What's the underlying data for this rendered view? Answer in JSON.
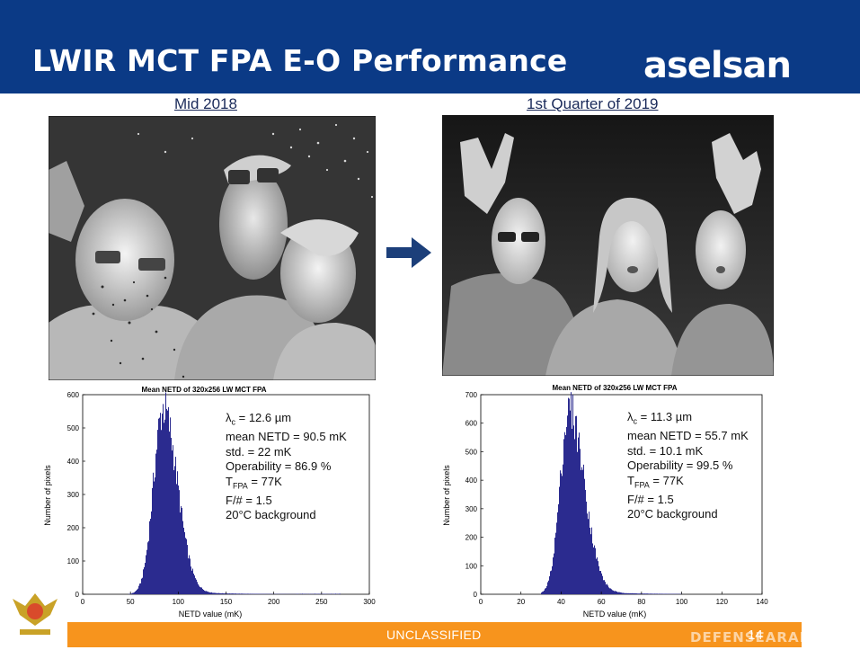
{
  "header": {
    "title": "LWIR MCT FPA E-O Performance",
    "logo_text": "aselsan"
  },
  "left_panel": {
    "caption": "Mid 2018"
  },
  "right_panel": {
    "caption": "1st Quarter of 2019"
  },
  "footer": {
    "classification": "UNCLASSIFIED",
    "page_number": "14",
    "watermark": "DEFENSEARAB"
  },
  "chart_data": [
    {
      "type": "bar",
      "title": "Mean NETD of 320x256 LW MCT FPA",
      "xlabel": "NETD value (mK)",
      "ylabel": "Number of pixels",
      "xlim": [
        0,
        300
      ],
      "ylim": [
        0,
        600
      ],
      "xticks": [
        0,
        50,
        100,
        150,
        200,
        250,
        300
      ],
      "yticks": [
        0,
        100,
        200,
        300,
        400,
        500,
        600
      ],
      "bar_color": "#2b2b8f",
      "distribution": {
        "peak_x": 84,
        "peak_y": 550,
        "sigma_left": 10,
        "sigma_right": 15,
        "min_x": 48,
        "max_x": 270
      },
      "stats": {
        "lambda_symbol": "λ",
        "lambda_sub": "c",
        "lambda_value": " = 12.6 µm",
        "mean": "mean NETD = 90.5 mK",
        "std": "std. = 22 mK",
        "operability": "Operability = 86.9 %",
        "tfpa_symbol": "T",
        "tfpa_sub": "FPA",
        "tfpa_value": " = 77K",
        "fnum": "F/# = 1.5",
        "background": "20°C background"
      }
    },
    {
      "type": "bar",
      "title": "Mean NETD of 320x256 LW MCT FPA",
      "xlabel": "NETD value (mK)",
      "ylabel": "Number of pixels",
      "xlim": [
        0,
        140
      ],
      "ylim": [
        0,
        700
      ],
      "xticks": [
        0,
        20,
        40,
        60,
        80,
        100,
        120,
        140
      ],
      "yticks": [
        0,
        100,
        200,
        300,
        400,
        500,
        600,
        700
      ],
      "bar_color": "#2b2b8f",
      "distribution": {
        "peak_x": 44,
        "peak_y": 640,
        "sigma_left": 4.5,
        "sigma_right": 7.5,
        "min_x": 30,
        "max_x": 100
      },
      "stats": {
        "lambda_symbol": "λ",
        "lambda_sub": "c",
        "lambda_value": " = 11.3 µm",
        "mean": "mean NETD = 55.7 mK",
        "std": "std. = 10.1 mK",
        "operability": "Operability = 99.5 %",
        "tfpa_symbol": "T",
        "tfpa_sub": "FPA",
        "tfpa_value": " = 77K",
        "fnum": "F/# = 1.5",
        "background": "20°C background"
      }
    }
  ],
  "colors": {
    "header_bg": "#0b3a86",
    "footer_bg": "#f7941d",
    "arrow": "#1c3f7a"
  }
}
